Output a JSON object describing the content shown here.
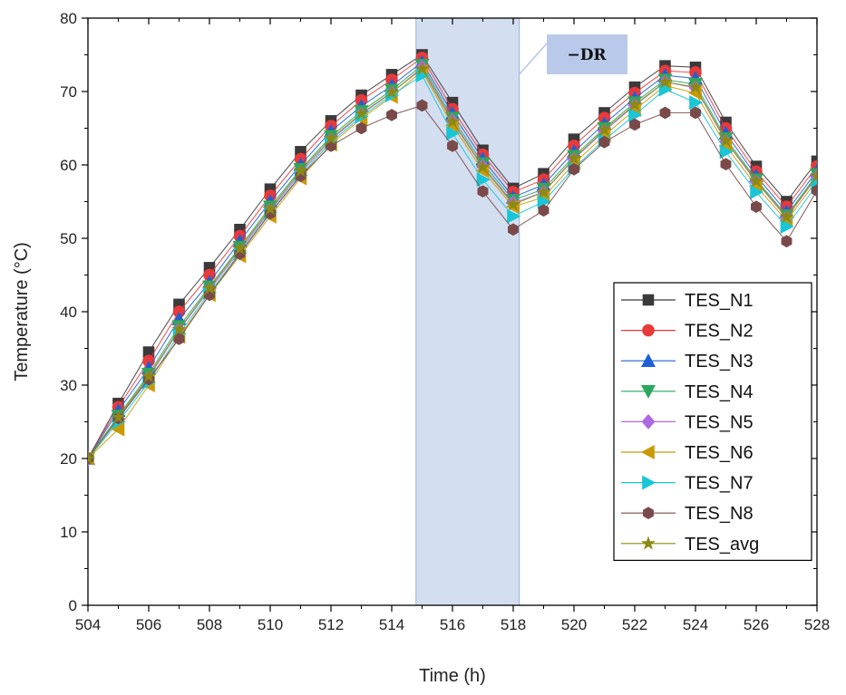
{
  "chart_data": {
    "type": "line",
    "title": "",
    "xlabel": "Time (h)",
    "ylabel": "Temperature (°C)",
    "xlim": [
      504,
      528
    ],
    "ylim": [
      0,
      80
    ],
    "xticks": [
      504,
      506,
      508,
      510,
      512,
      514,
      516,
      518,
      520,
      522,
      524,
      526,
      528
    ],
    "yticks": [
      0,
      10,
      20,
      30,
      40,
      50,
      60,
      70,
      80
    ],
    "x": [
      504,
      505,
      506,
      507,
      508,
      509,
      510,
      511,
      512,
      513,
      514,
      515,
      516,
      517,
      518,
      519,
      520,
      521,
      522,
      523,
      524,
      525,
      526,
      527,
      528
    ],
    "legend_position": "bottom-right",
    "grid": false,
    "annotation": {
      "label": "DR",
      "label_prefix": "−",
      "x_start": 514.8,
      "x_end": 518.2,
      "fill": "#c9d6ee"
    },
    "series": [
      {
        "name": "TES_N1",
        "color": "#3a3a3a",
        "marker": "square",
        "values": [
          20,
          27.5,
          34.5,
          41,
          46,
          51.2,
          56.7,
          61.8,
          66,
          69.5,
          72.3,
          75,
          68.5,
          62,
          56.8,
          58.8,
          63.5,
          67.1,
          70.6,
          73.5,
          73.3,
          65.8,
          59.8,
          55,
          60.5
        ]
      },
      {
        "name": "TES_N2",
        "color": "#e8393b",
        "marker": "circle",
        "values": [
          20,
          27,
          33.3,
          40,
          45,
          50.3,
          55.8,
          60.8,
          65.3,
          68.8,
          71.6,
          74.6,
          67.6,
          61.4,
          56.3,
          58,
          62.6,
          66.4,
          69.8,
          72.8,
          72.6,
          65,
          59.1,
          54.3,
          59.8
        ]
      },
      {
        "name": "TES_N3",
        "color": "#1f5fd6",
        "marker": "triangle-up",
        "values": [
          20,
          26.5,
          32.3,
          39,
          44,
          49.6,
          55,
          60,
          64.6,
          68,
          70.8,
          74,
          67,
          60.8,
          55.6,
          57.3,
          61.8,
          65.6,
          69.1,
          72.2,
          71.8,
          64.3,
          58.5,
          53.6,
          59.2
        ]
      },
      {
        "name": "TES_N4",
        "color": "#2aa85d",
        "marker": "triangle-down",
        "values": [
          20,
          25.8,
          31.5,
          38,
          43.4,
          48.8,
          54.3,
          59.4,
          63.9,
          67.3,
          70.2,
          73.6,
          66.4,
          60.2,
          55.2,
          56.7,
          61.2,
          65,
          68.5,
          71.6,
          71,
          63.6,
          58,
          53.1,
          58.7
        ]
      },
      {
        "name": "TES_N5",
        "color": "#b068e0",
        "marker": "diamond",
        "values": [
          20,
          25.4,
          31,
          37.5,
          43,
          48.3,
          53.8,
          58.9,
          63.4,
          66.9,
          69.8,
          73.3,
          66,
          59.8,
          54.8,
          56.3,
          60.8,
          64.6,
          68.1,
          71.3,
          70.5,
          63.2,
          57.7,
          52.8,
          58.4
        ]
      },
      {
        "name": "TES_N6",
        "color": "#c99a06",
        "marker": "triangle-left",
        "values": [
          20,
          24,
          30,
          36.6,
          42.3,
          47.6,
          53,
          58.2,
          62.8,
          66.3,
          69.3,
          72.8,
          65.4,
          59.2,
          54.3,
          55.6,
          60.2,
          64,
          67.5,
          70.8,
          69.8,
          62.6,
          57.1,
          52.4,
          57.9
        ]
      },
      {
        "name": "TES_N7",
        "color": "#18c6d6",
        "marker": "triangle-right",
        "values": [
          20,
          25,
          30.4,
          37,
          42.6,
          48,
          53.5,
          58.6,
          63.1,
          66.6,
          69.5,
          72.2,
          64.3,
          58,
          53,
          55,
          59.6,
          63.4,
          66.8,
          70.3,
          68.5,
          61.8,
          56.3,
          51.6,
          57.3
        ]
      },
      {
        "name": "TES_N8",
        "color": "#7a4a4a",
        "marker": "hexagon",
        "values": [
          20,
          25.5,
          30.8,
          36.3,
          42.3,
          47.9,
          53.4,
          58.5,
          62.6,
          65,
          66.8,
          68.1,
          62.6,
          56.4,
          51.2,
          53.8,
          59.4,
          63.1,
          65.5,
          67.1,
          67.1,
          60.1,
          54.3,
          49.6,
          56.5
        ]
      },
      {
        "name": "TES_avg",
        "color": "#8a8a14",
        "marker": "star",
        "values": [
          20,
          25.6,
          31.2,
          37.6,
          43.2,
          48.6,
          54,
          59.2,
          63.6,
          67,
          69.9,
          73.1,
          65.9,
          59.7,
          54.6,
          56.3,
          60.9,
          64.8,
          68.2,
          71.3,
          70.6,
          63.3,
          57.8,
          52.9,
          58.5
        ]
      }
    ]
  }
}
